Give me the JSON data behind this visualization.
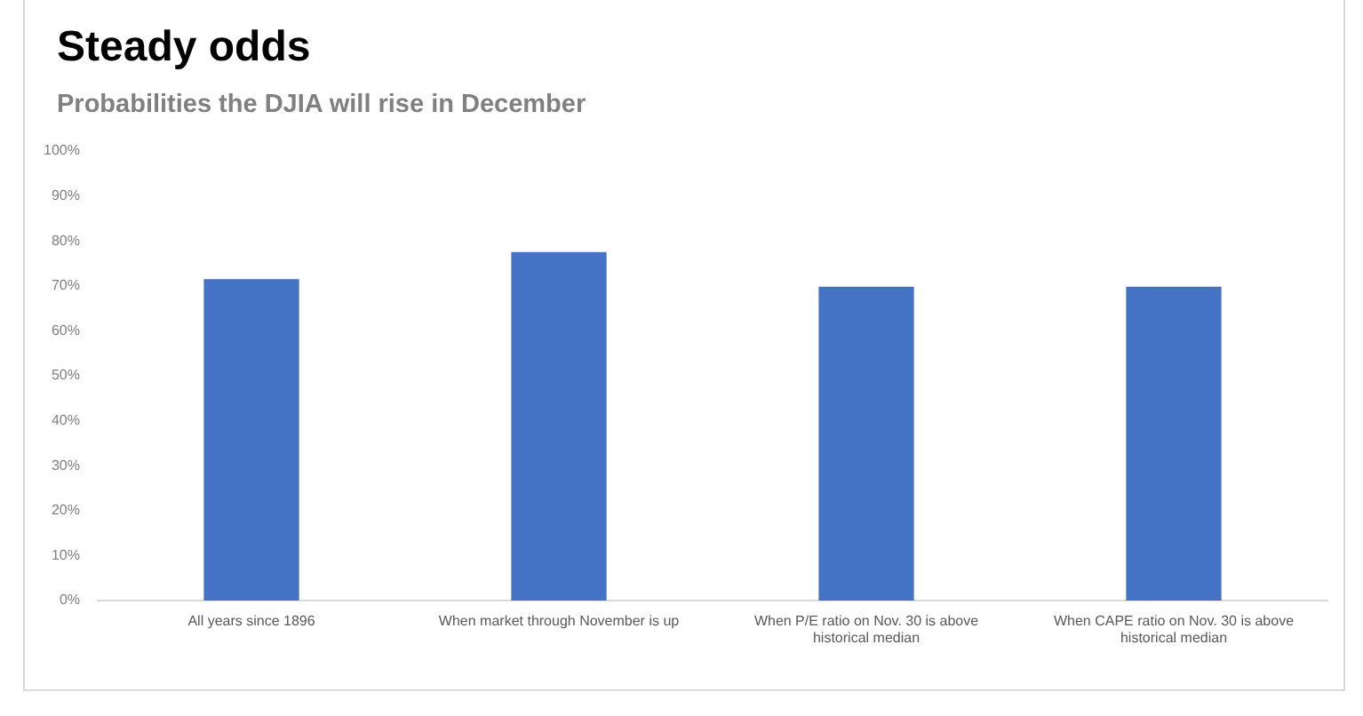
{
  "chart_data": {
    "type": "bar",
    "title": "Steady odds",
    "subtitle": "Probabilities the DJIA will rise in December",
    "categories": [
      "All years since 1896",
      "When market through November is up",
      "When P/E ratio on Nov. 30 is above historical median",
      "When CAPE ratio on Nov. 30 is above historical median"
    ],
    "values": [
      71.5,
      77.5,
      69.8,
      69.8
    ],
    "color": "#4472c4",
    "ylim": [
      0,
      100
    ],
    "yticks": [
      {
        "value": 0,
        "label": "0%"
      },
      {
        "value": 10,
        "label": "10%"
      },
      {
        "value": 20,
        "label": "20%"
      },
      {
        "value": 30,
        "label": "30%"
      },
      {
        "value": 40,
        "label": "40%"
      },
      {
        "value": 50,
        "label": "50%"
      },
      {
        "value": 60,
        "label": "60%"
      },
      {
        "value": 70,
        "label": "70%"
      },
      {
        "value": 80,
        "label": "80%"
      },
      {
        "value": 90,
        "label": "90%"
      },
      {
        "value": 100,
        "label": "100%"
      }
    ]
  }
}
